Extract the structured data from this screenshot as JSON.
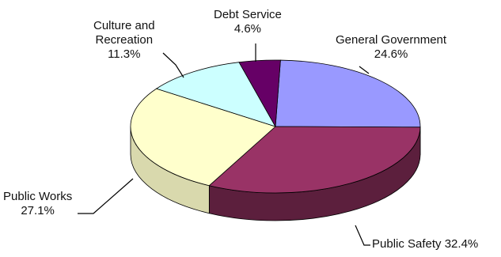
{
  "chart_data": {
    "type": "pie",
    "title": "",
    "start_slice": "General Government",
    "slices": [
      {
        "label": "General Government",
        "value": 24.6,
        "value_text": "24.6%",
        "color": "#9999FF",
        "side_color": "#5C5C99"
      },
      {
        "label": "Public Safety",
        "value": 32.4,
        "value_text": "32.4%",
        "color": "#993366",
        "side_color": "#5C1F3D"
      },
      {
        "label": "Public Works",
        "value": 27.1,
        "value_text": "27.1%",
        "color": "#FFFFCC",
        "side_color": "#D9D9AD"
      },
      {
        "label": "Culture and Recreation",
        "label_lines": [
          "Culture and",
          "Recreation"
        ],
        "value": 11.3,
        "value_text": "11.3%",
        "color": "#CCFFFF",
        "side_color": "#A6D9D9"
      },
      {
        "label": "Debt Service",
        "value": 4.6,
        "value_text": "4.6%",
        "color": "#660066",
        "side_color": "#3D003D"
      }
    ],
    "style": "3d-pie",
    "legend": "none"
  }
}
